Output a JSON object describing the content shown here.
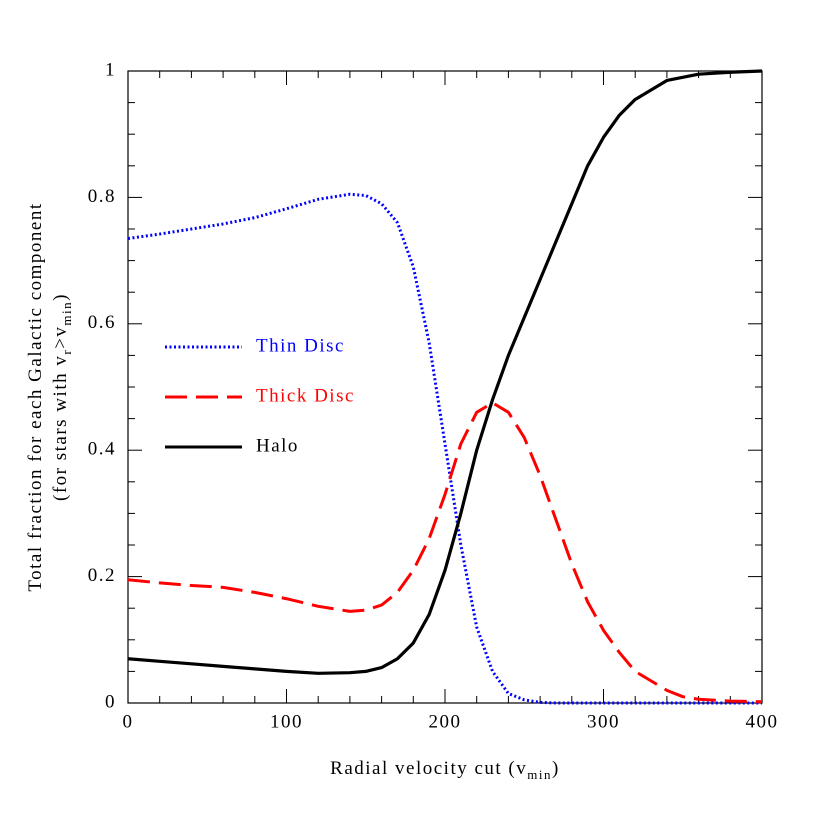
{
  "chart_data": {
    "type": "line",
    "xlabel": [
      "Radial velocity cut (v",
      "min",
      ")"
    ],
    "ylabel": [
      "Total fraction for each Galactic component"
    ],
    "ylabel2": [
      "(for stars with v",
      "r",
      ">v",
      "min",
      ")"
    ],
    "x": [
      0,
      20,
      40,
      60,
      80,
      100,
      120,
      140,
      150,
      160,
      170,
      180,
      190,
      200,
      210,
      220,
      230,
      240,
      250,
      260,
      270,
      280,
      290,
      300,
      310,
      320,
      330,
      340,
      350,
      360,
      380,
      400
    ],
    "series": [
      {
        "name": "Thin Disc",
        "color": "#0000ff",
        "style": "dotted",
        "values": [
          0.735,
          0.742,
          0.75,
          0.758,
          0.768,
          0.782,
          0.797,
          0.805,
          0.803,
          0.79,
          0.76,
          0.69,
          0.57,
          0.41,
          0.25,
          0.12,
          0.05,
          0.015,
          0.005,
          0.001,
          0,
          0,
          0,
          0,
          0,
          0,
          0,
          0,
          0,
          0,
          0,
          0
        ]
      },
      {
        "name": "Thick Disc",
        "color": "#ff0000",
        "style": "dashed",
        "values": [
          0.195,
          0.19,
          0.186,
          0.183,
          0.175,
          0.165,
          0.153,
          0.145,
          0.147,
          0.155,
          0.175,
          0.21,
          0.26,
          0.33,
          0.41,
          0.46,
          0.475,
          0.46,
          0.42,
          0.36,
          0.29,
          0.22,
          0.16,
          0.115,
          0.08,
          0.05,
          0.035,
          0.02,
          0.01,
          0.006,
          0.003,
          0.002
        ]
      },
      {
        "name": "Halo",
        "color": "#000000",
        "style": "solid",
        "values": [
          0.07,
          0.066,
          0.062,
          0.058,
          0.054,
          0.05,
          0.047,
          0.048,
          0.05,
          0.056,
          0.07,
          0.095,
          0.14,
          0.21,
          0.3,
          0.4,
          0.48,
          0.55,
          0.61,
          0.67,
          0.73,
          0.79,
          0.85,
          0.895,
          0.93,
          0.955,
          0.97,
          0.985,
          0.99,
          0.995,
          0.998,
          1
        ]
      }
    ],
    "xlim": [
      0,
      400
    ],
    "xticks": [
      0,
      100,
      200,
      300,
      400
    ],
    "ylim": [
      0,
      1
    ],
    "yticks": [
      0,
      0.2,
      0.4,
      0.6,
      0.8,
      1
    ],
    "legend": "center-left",
    "grid": false
  }
}
